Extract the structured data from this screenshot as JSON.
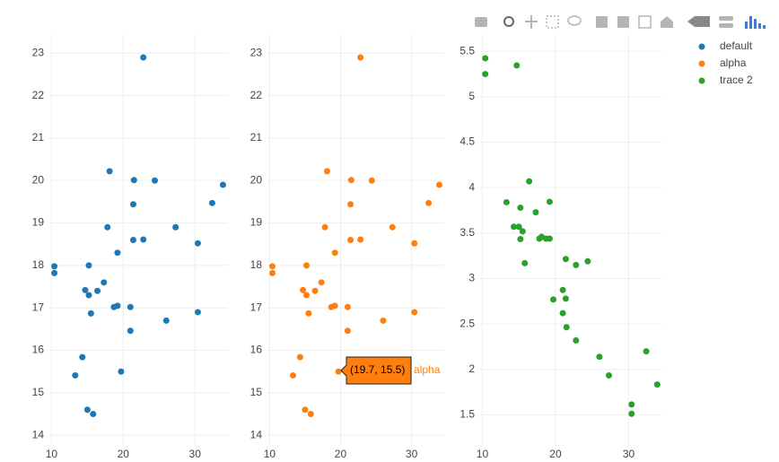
{
  "chart_data": [
    {
      "type": "scatter",
      "x": [
        21.0,
        21.0,
        22.8,
        21.4,
        18.7,
        18.1,
        14.3,
        24.4,
        22.8,
        19.2,
        17.8,
        16.4,
        17.3,
        15.2,
        10.4,
        10.4,
        14.7,
        32.4,
        30.4,
        33.9,
        21.5,
        15.5,
        15.2,
        13.3,
        19.2,
        27.3,
        26.0,
        30.4,
        15.8,
        19.7,
        15.0,
        21.4
      ],
      "series": [
        {
          "name": "default",
          "color": "#1f77b4",
          "values": [
            16.46,
            17.02,
            18.61,
            19.44,
            17.02,
            20.22,
            15.84,
            20.0,
            22.9,
            18.3,
            18.9,
            17.4,
            17.6,
            18.0,
            17.98,
            17.82,
            17.42,
            19.47,
            18.52,
            19.9,
            20.01,
            16.87,
            17.3,
            15.41,
            17.05,
            18.9,
            16.7,
            16.9,
            14.5,
            15.5,
            14.6,
            18.6
          ]
        }
      ],
      "xlim": [
        9.7,
        34.6
      ],
      "xticks": [
        10,
        20,
        30
      ],
      "ylim": [
        13.75,
        23.45
      ],
      "yticks": [
        14,
        15,
        16,
        17,
        18,
        19,
        20,
        21,
        22,
        23
      ],
      "grid": true
    },
    {
      "type": "scatter",
      "x": [
        21.0,
        21.0,
        22.8,
        21.4,
        18.7,
        18.1,
        14.3,
        24.4,
        22.8,
        19.2,
        17.8,
        16.4,
        17.3,
        15.2,
        10.4,
        10.4,
        14.7,
        32.4,
        30.4,
        33.9,
        21.5,
        15.5,
        15.2,
        13.3,
        19.2,
        27.3,
        26.0,
        30.4,
        15.8,
        19.7,
        15.0,
        21.4
      ],
      "series": [
        {
          "name": "alpha",
          "color": "#ff7f0e",
          "values": [
            16.46,
            17.02,
            18.61,
            19.44,
            17.02,
            20.22,
            15.84,
            20.0,
            22.9,
            18.3,
            18.9,
            17.4,
            17.6,
            18.0,
            17.98,
            17.82,
            17.42,
            19.47,
            18.52,
            19.9,
            20.01,
            16.87,
            17.3,
            15.41,
            17.05,
            18.9,
            16.7,
            16.9,
            14.5,
            15.5,
            14.6,
            18.6
          ]
        }
      ],
      "xlim": [
        9.7,
        34.6
      ],
      "xticks": [
        10,
        20,
        30
      ],
      "ylim": [
        13.75,
        23.45
      ],
      "yticks": [
        14,
        15,
        16,
        17,
        18,
        19,
        20,
        21,
        22,
        23
      ],
      "grid": true,
      "hover": {
        "text": "(19.7, 15.5)",
        "name": "alpha"
      }
    },
    {
      "type": "scatter",
      "x": [
        21.0,
        21.0,
        22.8,
        21.4,
        18.7,
        18.1,
        14.3,
        24.4,
        22.8,
        19.2,
        17.8,
        16.4,
        17.3,
        15.2,
        10.4,
        10.4,
        14.7,
        32.4,
        30.4,
        33.9,
        21.5,
        15.5,
        15.2,
        13.3,
        19.2,
        27.3,
        26.0,
        30.4,
        15.8,
        19.7,
        15.0,
        21.4
      ],
      "series": [
        {
          "name": "trace 2",
          "color": "#2ca02c",
          "values": [
            2.62,
            2.875,
            2.32,
            3.215,
            3.44,
            3.46,
            3.57,
            3.19,
            3.15,
            3.44,
            3.44,
            4.07,
            3.73,
            3.78,
            5.25,
            5.424,
            5.345,
            2.2,
            1.615,
            1.835,
            2.465,
            3.52,
            3.435,
            3.84,
            3.845,
            1.935,
            2.14,
            1.513,
            3.17,
            2.77,
            3.57,
            2.78
          ]
        }
      ],
      "xlim": [
        9.7,
        34.6
      ],
      "xticks": [
        10,
        20,
        30
      ],
      "ylim": [
        1.16,
        5.69
      ],
      "yticks": [
        1.5,
        2,
        2.5,
        3,
        3.5,
        4,
        4.5,
        5,
        5.5
      ],
      "grid": true
    }
  ]
}
